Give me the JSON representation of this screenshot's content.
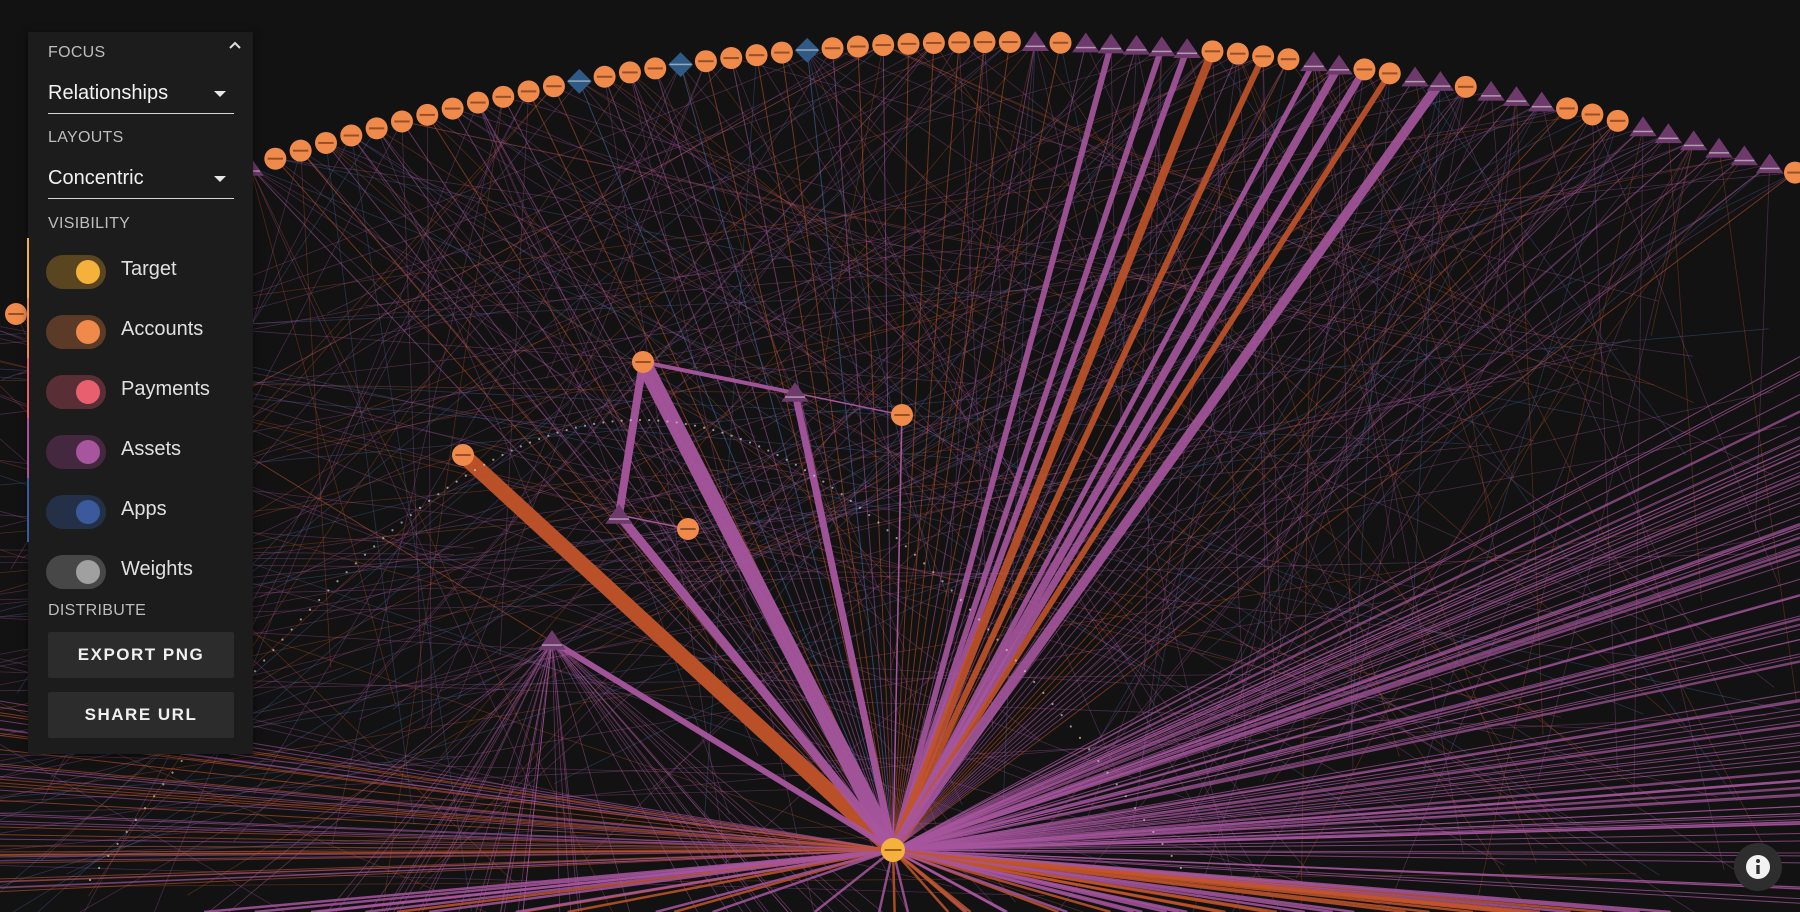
{
  "panel": {
    "focus_label": "FOCUS",
    "focus_value": "Relationships",
    "layouts_label": "LAYOUTS",
    "layouts_value": "Concentric",
    "visibility_label": "VISIBILITY",
    "visibility": [
      {
        "label": "Target",
        "color": "#f4b13c",
        "track": "#5a4521",
        "marker": "#f4b13c",
        "enabled": true
      },
      {
        "label": "Accounts",
        "color": "#f08a4b",
        "track": "#5c3a28",
        "marker": "#f08a4b",
        "enabled": true
      },
      {
        "label": "Payments",
        "color": "#e8606f",
        "track": "#5a2e35",
        "marker": "#e8606f",
        "enabled": true
      },
      {
        "label": "Assets",
        "color": "#a7569e",
        "track": "#44283f",
        "marker": "#a7569e",
        "enabled": true
      },
      {
        "label": "Apps",
        "color": "#3a5a9c",
        "track": "#243047",
        "marker": "#3a5a9c",
        "enabled": true
      },
      {
        "label": "Weights",
        "color": "#a0a0a0",
        "track": "#474747",
        "marker": "none",
        "enabled": true
      }
    ],
    "distribute_label": "DISTRIBUTE",
    "export_label": "EXPORT PNG",
    "share_label": "SHARE URL",
    "collapse_icon": "chevron-up-icon"
  },
  "graph": {
    "colors": {
      "background": "#121212",
      "target": "#f4b13c",
      "account": "#f08a4b",
      "account_edge": "#c2542a",
      "asset": "#a7569e",
      "asset_dark": "#6e3a6c",
      "app": "#2f5a86",
      "app_edge": "#4d6fb0",
      "payment": "#e8606f"
    },
    "node_kinds": [
      "target",
      "account",
      "asset",
      "app"
    ]
  },
  "info_icon": "info-icon"
}
